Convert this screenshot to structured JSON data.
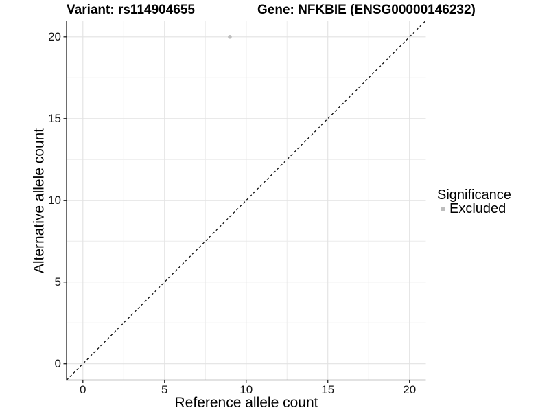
{
  "titles": {
    "left": "Variant: rs114904655",
    "right": "Gene: NFKBIE (ENSG00000146232)"
  },
  "chart_data": {
    "type": "scatter",
    "title_left": "Variant: rs114904655",
    "title_right": "Gene: NFKBIE (ENSG00000146232)",
    "xlabel": "Reference allele count",
    "ylabel": "Alternative allele count",
    "xlim": [
      -1,
      21
    ],
    "ylim": [
      -1,
      21
    ],
    "x_ticks": [
      0,
      5,
      10,
      15,
      20
    ],
    "y_ticks": [
      0,
      5,
      10,
      15,
      20
    ],
    "x_minor_ticks": [
      2.5,
      7.5,
      12.5,
      17.5
    ],
    "y_minor_ticks": [
      2.5,
      7.5,
      12.5,
      17.5
    ],
    "grid": "major and minor gridlines, light gray on white panel",
    "identity_line": {
      "style": "dashed",
      "color": "#000000",
      "from": [
        -1,
        -1
      ],
      "to": [
        21,
        21
      ]
    },
    "series": [
      {
        "name": "Excluded",
        "color": "#BDBDBD",
        "points": [
          {
            "x": 9,
            "y": 20
          }
        ]
      }
    ],
    "legend": {
      "title": "Significance",
      "position": "right",
      "entries": [
        {
          "label": "Excluded",
          "color": "#BDBDBD",
          "marker": "circle"
        }
      ]
    }
  },
  "colors": {
    "background": "#FFFFFF",
    "axis_line": "#1F1F1F",
    "tick_mark": "#1F1F1F",
    "grid_major": "#E2E2E2",
    "grid_minor": "#ECECEC",
    "identity_line": "#000000",
    "point": "#BDBDBD",
    "text": "#000000"
  }
}
